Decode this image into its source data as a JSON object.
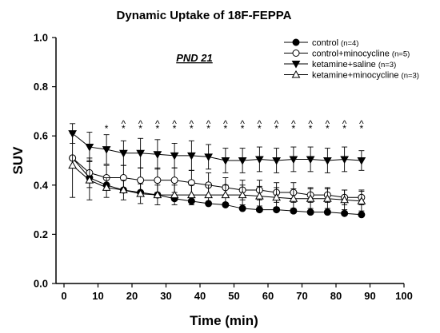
{
  "chart_data": {
    "type": "line",
    "title": "Dynamic Uptake of 18F-FEPPA",
    "xlabel": "Time (min)",
    "ylabel": "SUV",
    "xlim": [
      -10,
      100
    ],
    "ylim": [
      0.0,
      1.0
    ],
    "xticks": [
      "0",
      "10",
      "20",
      "30",
      "40",
      "50",
      "60",
      "70",
      "80",
      "90",
      "100"
    ],
    "yticks": [
      "0.0",
      "0.2",
      "0.4",
      "0.6",
      "0.8",
      "1.0"
    ],
    "annotation": "PND 21",
    "legend_position": "top-right",
    "x": [
      2.5,
      7.5,
      12.5,
      17.5,
      22.5,
      27.5,
      32.5,
      37.5,
      42.5,
      47.5,
      52.5,
      57.5,
      62.5,
      67.5,
      72.5,
      77.5,
      82.5,
      87.5
    ],
    "series": [
      {
        "name": "control",
        "n": "(n=4)",
        "marker": "filled-circle",
        "values": [
          0.51,
          0.43,
          0.4,
          0.38,
          0.37,
          0.36,
          0.345,
          0.335,
          0.325,
          0.32,
          0.305,
          0.3,
          0.3,
          0.295,
          0.29,
          0.29,
          0.285,
          0.28
        ],
        "errors": [
          0.0,
          0.0,
          0.0,
          0.0,
          0.0,
          0.0,
          0.0,
          0.0,
          0.0,
          0.0,
          0.0,
          0.0,
          0.0,
          0.0,
          0.0,
          0.0,
          0.0,
          0.0
        ]
      },
      {
        "name": "control+minocycline",
        "n": "(n=5)",
        "marker": "open-circle",
        "values": [
          0.51,
          0.45,
          0.43,
          0.43,
          0.42,
          0.42,
          0.42,
          0.41,
          0.4,
          0.39,
          0.38,
          0.38,
          0.37,
          0.37,
          0.36,
          0.36,
          0.35,
          0.35
        ],
        "errors": [
          0.0,
          0.06,
          0.05,
          0.05,
          0.05,
          0.05,
          0.05,
          0.05,
          0.05,
          0.04,
          0.04,
          0.04,
          0.04,
          0.04,
          0.03,
          0.03,
          0.03,
          0.03
        ]
      },
      {
        "name": "ketamine+saline",
        "n": "(n=3)",
        "marker": "filled-triangle-down",
        "values": [
          0.61,
          0.555,
          0.545,
          0.53,
          0.53,
          0.525,
          0.52,
          0.52,
          0.515,
          0.5,
          0.5,
          0.505,
          0.5,
          0.505,
          0.505,
          0.5,
          0.505,
          0.5
        ],
        "errors": [
          0.04,
          0.06,
          0.06,
          0.05,
          0.06,
          0.06,
          0.05,
          0.06,
          0.05,
          0.05,
          0.05,
          0.05,
          0.05,
          0.05,
          0.05,
          0.05,
          0.05,
          0.04
        ]
      },
      {
        "name": "ketamine+minocycline",
        "n": "(n=3)",
        "marker": "open-triangle-up",
        "values": [
          0.48,
          0.42,
          0.39,
          0.38,
          0.365,
          0.36,
          0.36,
          0.36,
          0.36,
          0.36,
          0.36,
          0.355,
          0.35,
          0.345,
          0.345,
          0.345,
          0.34,
          0.335
        ],
        "errors": [
          0.13,
          0.08,
          0.04,
          0.04,
          0.04,
          0.04,
          0.04,
          0.04,
          0.04,
          0.04,
          0.04,
          0.04,
          0.04,
          0.04,
          0.04,
          0.04,
          0.04,
          0.04
        ]
      }
    ],
    "significance": [
      {
        "x": 12.5,
        "marks": [
          "*"
        ]
      },
      {
        "x": 17.5,
        "marks": [
          "^",
          "*"
        ]
      },
      {
        "x": 22.5,
        "marks": [
          "^",
          "*"
        ]
      },
      {
        "x": 27.5,
        "marks": [
          "^",
          "*"
        ]
      },
      {
        "x": 32.5,
        "marks": [
          "^",
          "*"
        ]
      },
      {
        "x": 37.5,
        "marks": [
          "^",
          "*"
        ]
      },
      {
        "x": 42.5,
        "marks": [
          "^",
          "*"
        ]
      },
      {
        "x": 47.5,
        "marks": [
          "^",
          "*"
        ]
      },
      {
        "x": 52.5,
        "marks": [
          "^",
          "*"
        ]
      },
      {
        "x": 57.5,
        "marks": [
          "^",
          "*"
        ]
      },
      {
        "x": 62.5,
        "marks": [
          "^",
          "*"
        ]
      },
      {
        "x": 67.5,
        "marks": [
          "^",
          "*"
        ]
      },
      {
        "x": 72.5,
        "marks": [
          "^",
          "*"
        ]
      },
      {
        "x": 77.5,
        "marks": [
          "^",
          "*"
        ]
      },
      {
        "x": 82.5,
        "marks": [
          "^",
          "*"
        ]
      },
      {
        "x": 87.5,
        "marks": [
          "^",
          "*"
        ]
      }
    ]
  }
}
